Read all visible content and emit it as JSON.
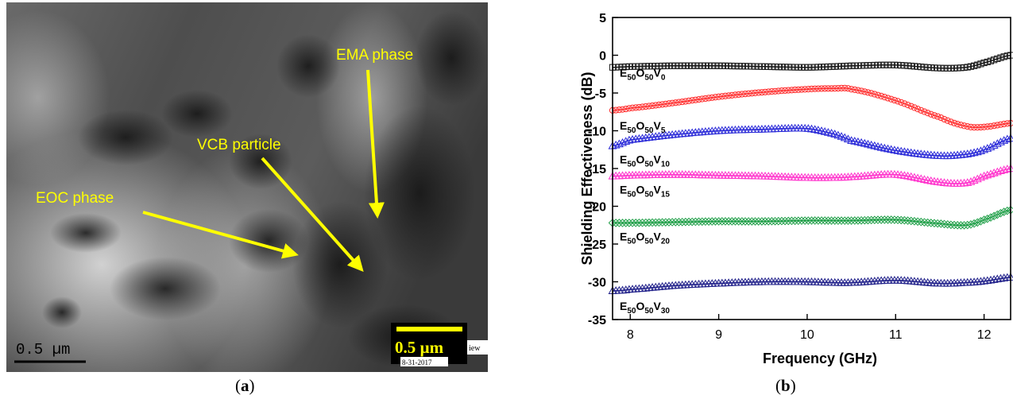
{
  "panel_a": {
    "annotations": [
      "EMA phase",
      "VCB particle",
      "EOC phase"
    ],
    "scalebar_left": "0.5 µm",
    "scalebar_right": "0.5 µm",
    "imprint_tag": "iew",
    "imprint_date": "8-31-2017",
    "annotation_color": "#ffff00"
  },
  "captions": {
    "a_letter": "a",
    "b_letter": "b"
  },
  "chart_data": {
    "type": "line",
    "xlabel": "Frequency (GHz)",
    "ylabel": "Shielding Effectiveness (dB)",
    "xlim": [
      7.8,
      12.3
    ],
    "ylim": [
      -35,
      5
    ],
    "xticks": [
      8,
      9,
      10,
      11,
      12
    ],
    "yticks": [
      5,
      0,
      -5,
      -10,
      -15,
      -20,
      -25,
      -30,
      -35
    ],
    "grid": false,
    "x": [
      7.8,
      8.0,
      8.5,
      9.0,
      9.5,
      10.0,
      10.3,
      10.5,
      11.0,
      11.5,
      11.8,
      12.0,
      12.3
    ],
    "series": [
      {
        "name": "E50O50V0",
        "label_base": [
          "E",
          "O",
          "V"
        ],
        "label_subs": [
          "50",
          "50",
          "0"
        ],
        "marker": "square",
        "color": "#1a1a1a",
        "values": [
          -1.6,
          -1.5,
          -1.4,
          -1.4,
          -1.5,
          -1.6,
          -1.5,
          -1.4,
          -1.3,
          -1.7,
          -1.6,
          -1.0,
          0.0
        ]
      },
      {
        "name": "E50O50V5",
        "label_base": [
          "E",
          "O",
          "V"
        ],
        "label_subs": [
          "50",
          "50",
          "5"
        ],
        "marker": "circle",
        "color": "#ff3030",
        "values": [
          -7.3,
          -7.0,
          -6.3,
          -5.5,
          -4.9,
          -4.5,
          -4.4,
          -4.5,
          -6.0,
          -8.2,
          -9.4,
          -9.5,
          -9.0
        ]
      },
      {
        "name": "E50O50V10",
        "label_base": [
          "E",
          "O",
          "V"
        ],
        "label_subs": [
          "50",
          "50",
          "10"
        ],
        "marker": "triangle",
        "color": "#2a2ad8",
        "values": [
          -12.0,
          -11.2,
          -10.5,
          -10.0,
          -9.8,
          -9.7,
          -10.4,
          -11.3,
          -12.6,
          -13.3,
          -13.1,
          -12.5,
          -11.0
        ]
      },
      {
        "name": "E50O50V15",
        "label_base": [
          "E",
          "O",
          "V"
        ],
        "label_subs": [
          "50",
          "50",
          "15"
        ],
        "marker": "triangle",
        "color": "#ff33cc",
        "values": [
          -16.0,
          -15.9,
          -15.8,
          -15.9,
          -16.0,
          -16.2,
          -16.2,
          -16.1,
          -15.8,
          -16.8,
          -16.9,
          -16.0,
          -15.0
        ]
      },
      {
        "name": "E50O50V20",
        "label_base": [
          "E",
          "O",
          "V"
        ],
        "label_subs": [
          "50",
          "50",
          "20"
        ],
        "marker": "diamond",
        "color": "#22a04a",
        "values": [
          -22.2,
          -22.2,
          -22.1,
          -22.0,
          -22.0,
          -21.9,
          -21.9,
          -21.9,
          -21.8,
          -22.3,
          -22.5,
          -21.8,
          -20.5
        ]
      },
      {
        "name": "E50O50V30",
        "label_base": [
          "E",
          "O",
          "V"
        ],
        "label_subs": [
          "50",
          "50",
          "30"
        ],
        "marker": "triangle",
        "color": "#20208a",
        "values": [
          -31.2,
          -31.0,
          -30.5,
          -30.2,
          -30.0,
          -30.0,
          -30.1,
          -30.1,
          -29.8,
          -30.2,
          -30.1,
          -29.9,
          -29.4
        ]
      }
    ]
  }
}
